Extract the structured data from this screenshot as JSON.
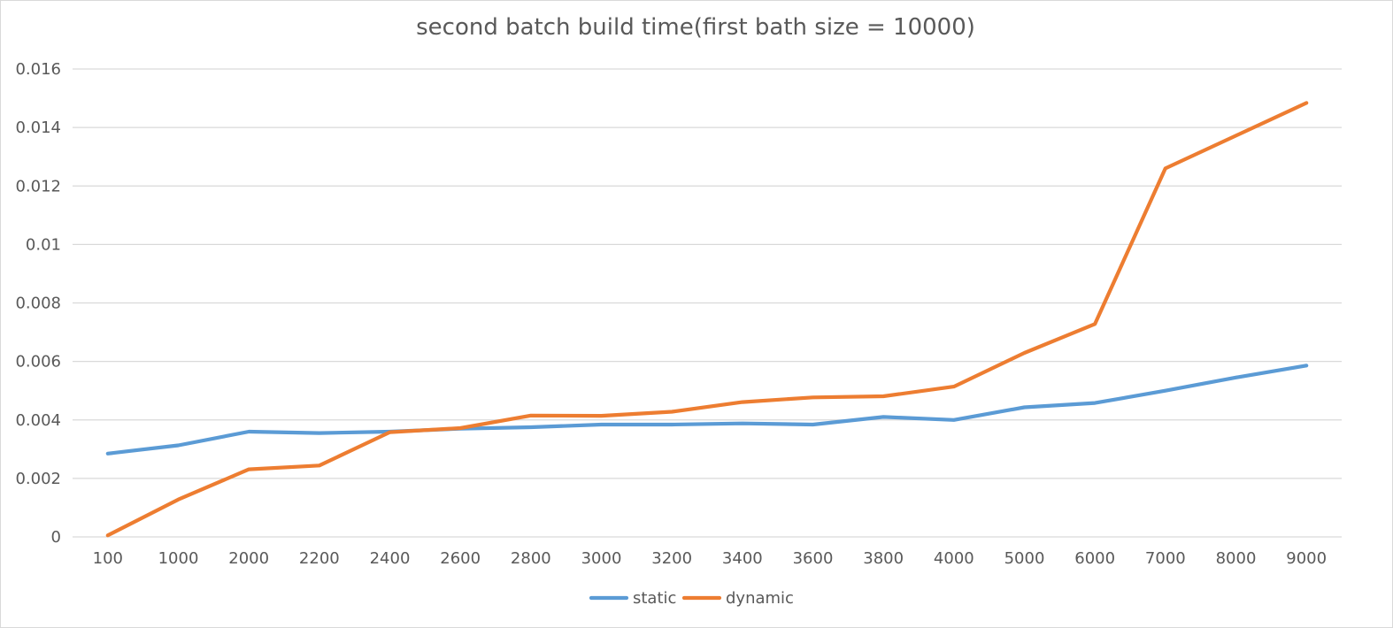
{
  "chart_data": {
    "type": "line",
    "title": "second batch build time(first bath size = 10000)",
    "xlabel": "",
    "ylabel": "",
    "categories": [
      "100",
      "1000",
      "2000",
      "2200",
      "2400",
      "2600",
      "2800",
      "3000",
      "3200",
      "3400",
      "3600",
      "3800",
      "4000",
      "5000",
      "6000",
      "7000",
      "8000",
      "9000"
    ],
    "ylim": [
      0,
      0.016
    ],
    "yticks": [
      0,
      0.002,
      0.004,
      0.006,
      0.008,
      0.01,
      0.012,
      0.014,
      0.016
    ],
    "ytick_labels": [
      "0",
      "0.002",
      "0.004",
      "0.006",
      "0.008",
      "0.01",
      "0.012",
      "0.014",
      "0.016"
    ],
    "grid": true,
    "legend_position": "bottom",
    "series": [
      {
        "name": "static",
        "color": "#5b9bd5",
        "values": [
          0.00285,
          0.00313,
          0.0036,
          0.00355,
          0.0036,
          0.0037,
          0.00375,
          0.00384,
          0.00384,
          0.00388,
          0.00384,
          0.0041,
          0.004,
          0.00443,
          0.00458,
          0.005,
          0.00545,
          0.00586
        ]
      },
      {
        "name": "dynamic",
        "color": "#ed7d31",
        "values": [
          5e-05,
          0.00128,
          0.00231,
          0.00244,
          0.00358,
          0.00372,
          0.00415,
          0.00414,
          0.00428,
          0.00461,
          0.00477,
          0.00481,
          0.00514,
          0.00629,
          0.00728,
          0.0126,
          0.01372,
          0.01484
        ]
      }
    ]
  }
}
